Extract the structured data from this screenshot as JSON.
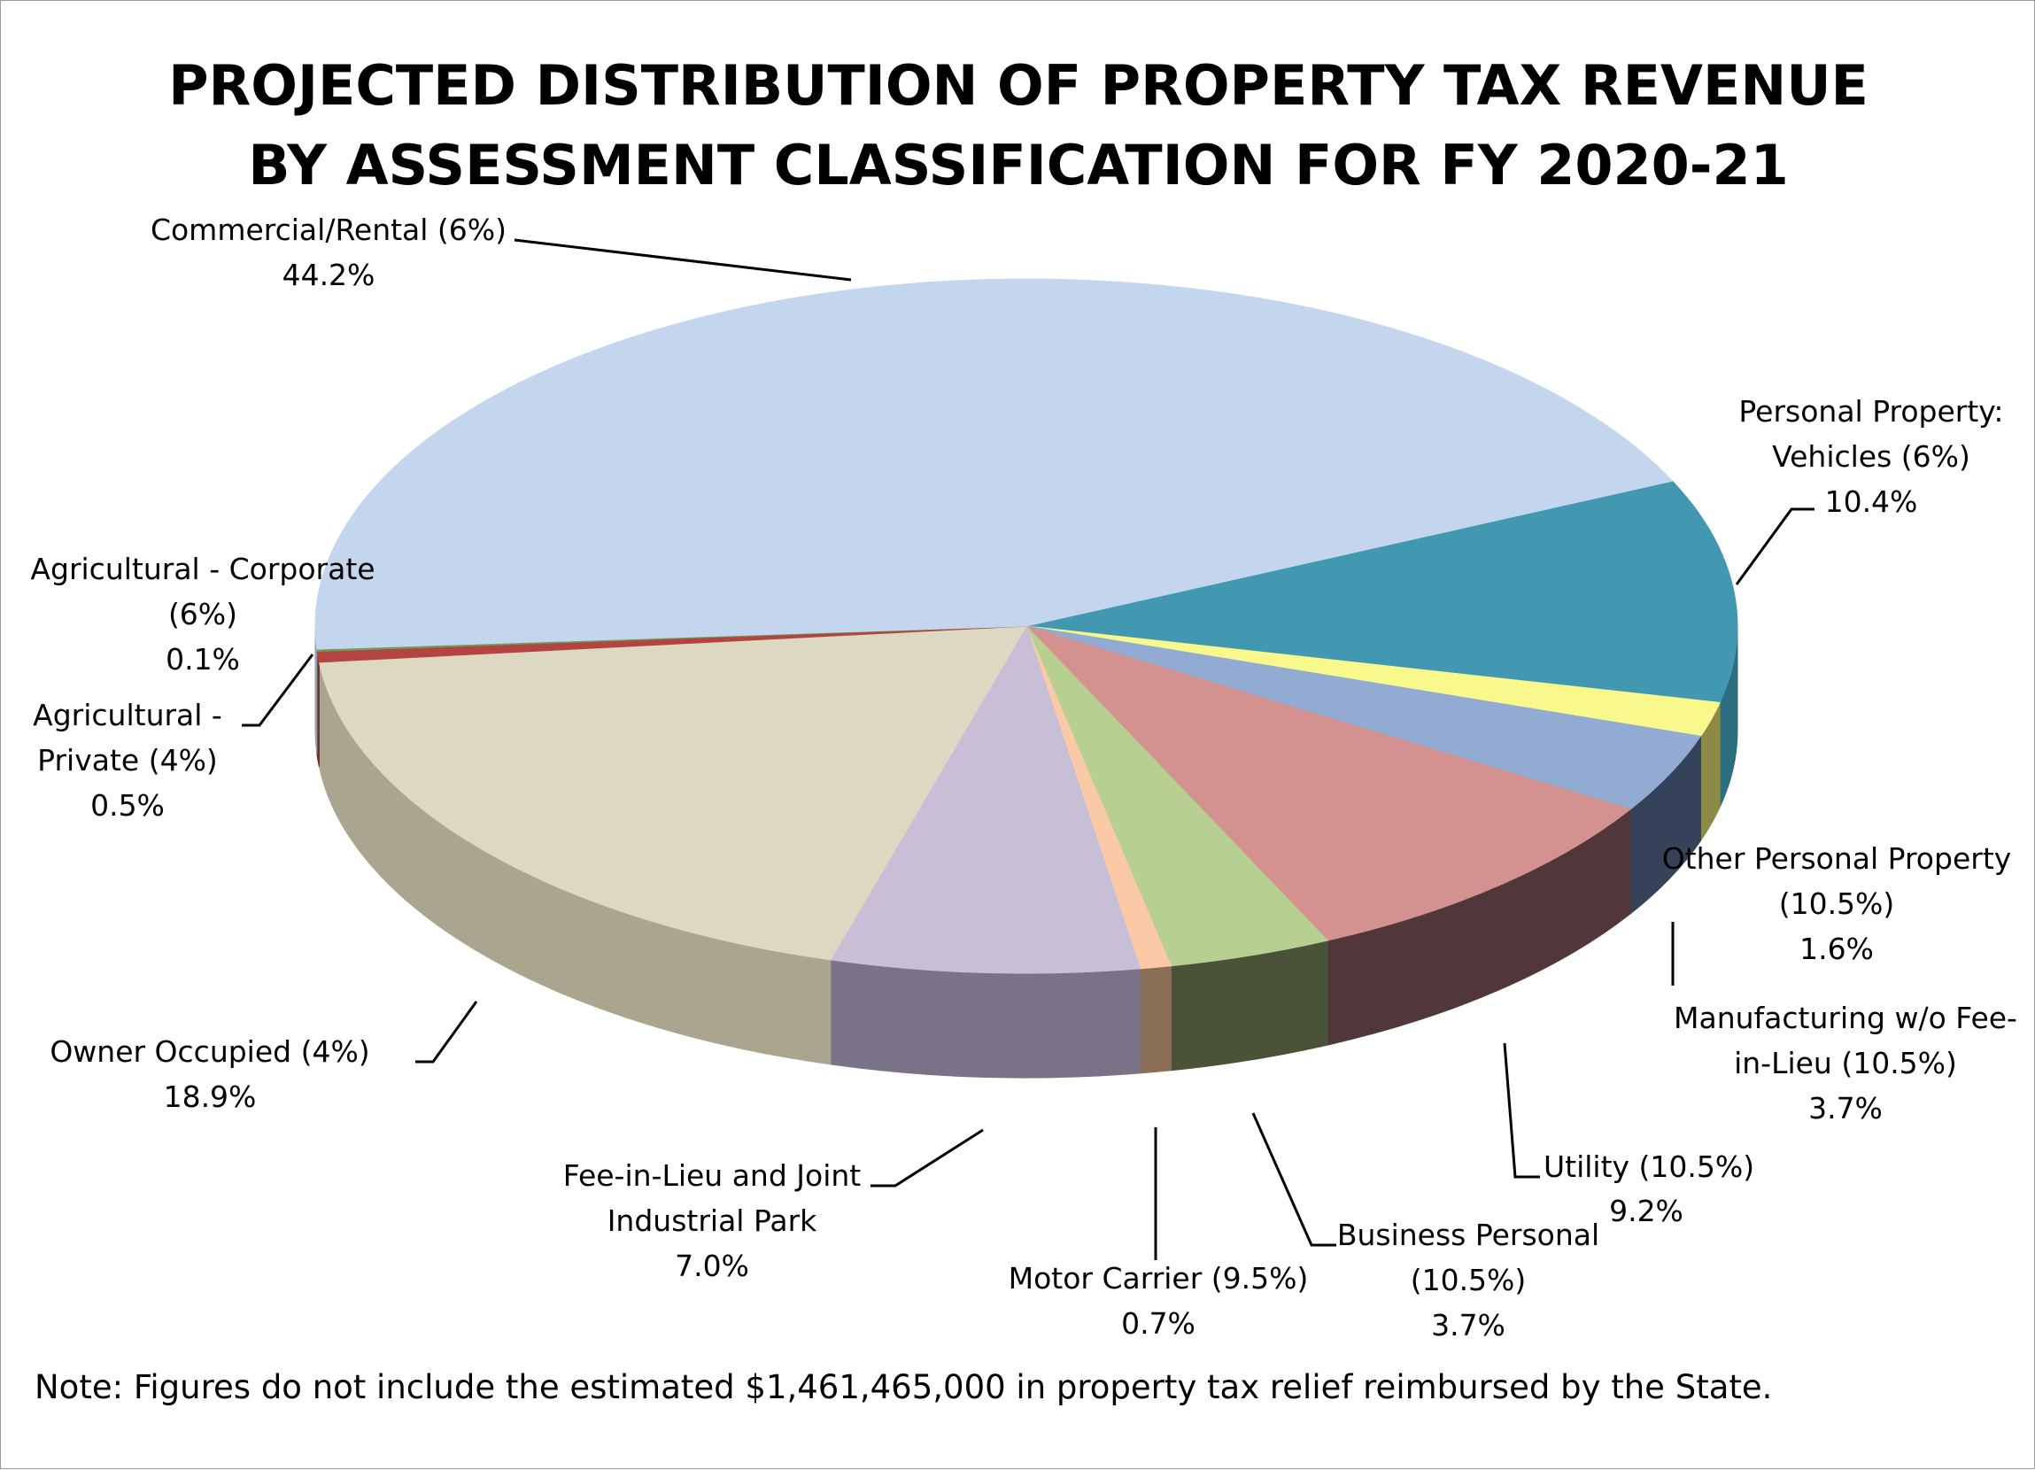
{
  "chart_data": {
    "type": "pie",
    "style": "3d",
    "title_lines": [
      "PROJECTED DISTRIBUTION OF PROPERTY TAX REVENUE",
      "BY ASSESSMENT CLASSIFICATION  FOR FY 2020-21"
    ],
    "unit": "%",
    "slices": [
      {
        "id": "personal-vehicles",
        "label_lines": [
          "Personal Property:",
          "Vehicles (6%)"
        ],
        "value_text": "10.4%",
        "value": 10.4,
        "color": "#4198B0",
        "side": "#2C6E80"
      },
      {
        "id": "other-personal",
        "label_lines": [
          "Other Personal Property",
          "(10.5%)"
        ],
        "value_text": "1.6%",
        "value": 1.6,
        "color": "#F8F88C",
        "side": "#8C8A45"
      },
      {
        "id": "manufacturing",
        "label_lines": [
          "Manufacturing w/o Fee-",
          "in-Lieu (10.5%)"
        ],
        "value_text": "3.7%",
        "value": 3.7,
        "color": "#92ABD3",
        "side": "#36415A"
      },
      {
        "id": "utility",
        "label_lines": [
          "Utility (10.5%)"
        ],
        "value_text": "9.2%",
        "value": 9.2,
        "color": "#D39290",
        "side": "#52373A"
      },
      {
        "id": "business-personal",
        "label_lines": [
          "Business Personal",
          "(10.5%)"
        ],
        "value_text": "3.7%",
        "value": 3.7,
        "color": "#B8CF92",
        "side": "#4A5238"
      },
      {
        "id": "motor-carrier",
        "label_lines": [
          "Motor Carrier (9.5%)"
        ],
        "value_text": "0.7%",
        "value": 0.7,
        "color": "#F9CAA5",
        "side": "#8A6E56"
      },
      {
        "id": "fee-in-lieu",
        "label_lines": [
          "Fee-in-Lieu and Joint",
          "Industrial Park"
        ],
        "value_text": "7.0%",
        "value": 7.0,
        "color": "#C8BED8",
        "side": "#7A7287"
      },
      {
        "id": "owner-occupied",
        "label_lines": [
          "Owner Occupied (4%)"
        ],
        "value_text": "18.9%",
        "value": 18.9,
        "color": "#DCD8C2",
        "side": "#A9A58F"
      },
      {
        "id": "ag-private",
        "label_lines": [
          "Agricultural -",
          "Private (4%)"
        ],
        "value_text": "0.5%",
        "value": 0.5,
        "color": "#B3443F",
        "side": "#7A2A27"
      },
      {
        "id": "ag-corporate",
        "label_lines": [
          "Agricultural - Corporate",
          "(6%)"
        ],
        "value_text": "0.1%",
        "value": 0.1,
        "color": "#6E9C5C",
        "side": "#3F5C34"
      },
      {
        "id": "commercial",
        "label_lines": [
          "Commercial/Rental (6%)"
        ],
        "value_text": "44.2%",
        "value": 44.2,
        "color": "#C4D6ED",
        "side": "#8FA0B5"
      }
    ],
    "note": "Note: Figures do not include the estimated $1,461,465,000 in property tax relief reimbursed by the State."
  }
}
